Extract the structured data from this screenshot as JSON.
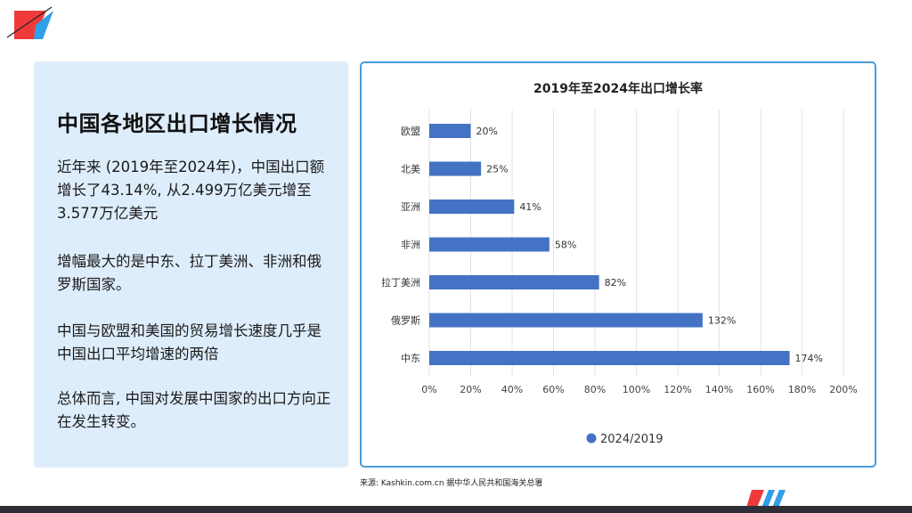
{
  "panel": {
    "title": "中国各地区出口增长情况",
    "paragraphs": [
      "近年来 (2019年至2024年)，中国出口额增长了43.14%, 从2.499万亿美元增至3.577万亿美元",
      "增幅最大的是中东、拉丁美洲、非洲和俄罗斯国家。",
      "中国与欧盟和美国的贸易增长速度几乎是中国出口平均增速的两倍",
      "总体而言, 中国对发展中国家的出口方向正在发生转变。"
    ]
  },
  "source": "来源: Kashkin.com.cn 据中华人民共和国海关总署",
  "colors": {
    "bar": "#4472c4",
    "panel_bg": "#deedfb",
    "border": "#4a9bd8",
    "logo_red": "#f03a3a",
    "logo_blue": "#2f9fe8"
  },
  "chart_data": {
    "type": "bar",
    "orientation": "horizontal",
    "title": "2019年至2024年出口增长率",
    "categories": [
      "欧盟",
      "北美",
      "亚洲",
      "非洲",
      "拉丁美洲",
      "俄罗斯",
      "中东"
    ],
    "series": [
      {
        "name": "2024/2019",
        "values": [
          20,
          25,
          41,
          58,
          82,
          132,
          174
        ],
        "labels": [
          "20%",
          "25%",
          "41%",
          "58%",
          "82%",
          "132%",
          "174%"
        ]
      }
    ],
    "xlim": [
      0,
      200
    ],
    "xticks": [
      "0%",
      "20%",
      "40%",
      "60%",
      "80%",
      "100%",
      "120%",
      "140%",
      "160%",
      "180%",
      "200%"
    ],
    "grid": true,
    "legend": "bottom"
  }
}
